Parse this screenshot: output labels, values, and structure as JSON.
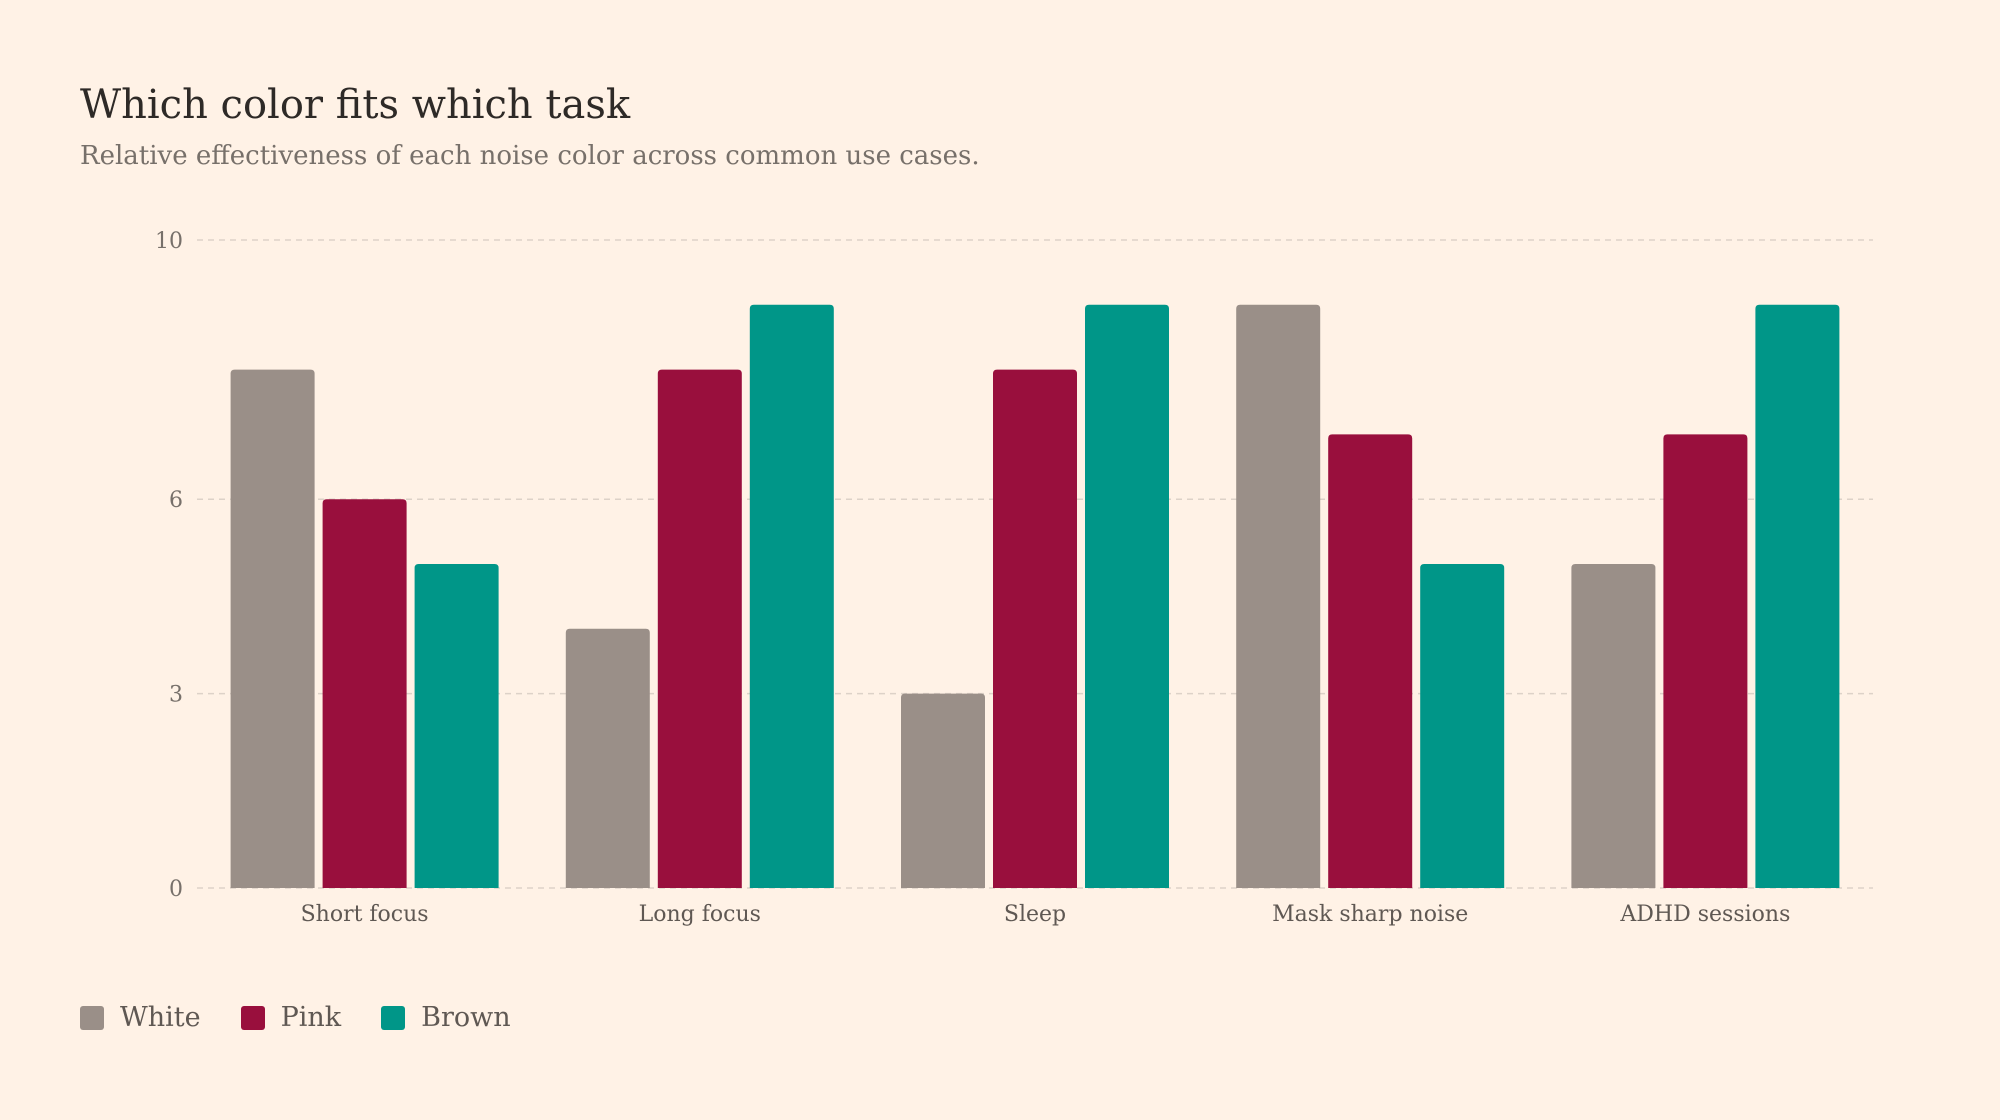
{
  "header": {
    "title": "Which color fits which task",
    "subtitle": "Relative effectiveness of each noise color across common use cases."
  },
  "chart_data": {
    "type": "bar",
    "title": "Which color fits which task",
    "subtitle": "Relative effectiveness of each noise color across common use cases.",
    "xlabel": "",
    "ylabel": "",
    "ylim": [
      0,
      10
    ],
    "yticks": [
      0,
      3,
      6,
      10
    ],
    "yticks_labels": [
      "0",
      "3",
      "6",
      "10"
    ],
    "grid": "horizontal-dashed",
    "legend_position": "bottom-left",
    "categories": [
      "Short focus",
      "Long focus",
      "Sleep",
      "Mask sharp noise",
      "ADHD sessions"
    ],
    "series": [
      {
        "name": "White",
        "color": "#9a8f88",
        "values": [
          8,
          4,
          3,
          9,
          5
        ]
      },
      {
        "name": "Pink",
        "color": "#990f3d",
        "values": [
          6,
          8,
          8,
          7,
          7
        ]
      },
      {
        "name": "Brown",
        "color": "#009688",
        "values": [
          5,
          9,
          9,
          5,
          9
        ]
      }
    ]
  }
}
